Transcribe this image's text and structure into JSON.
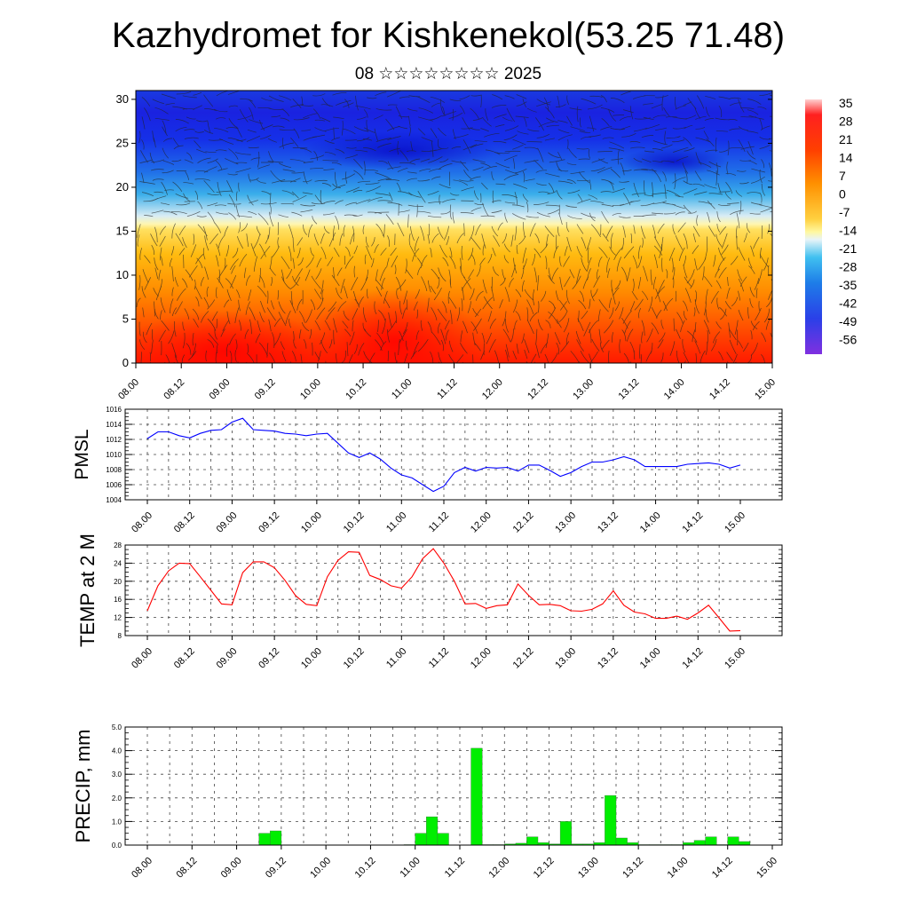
{
  "title": "Kazhydromet for Kishkenekol(53.25 71.48)",
  "subtitle": "08 ☆☆☆☆☆☆☆☆ 2025",
  "chart_data": [
    {
      "type": "heatmap",
      "id": "cross-section",
      "description_note": "",
      "x_ticks": [
        "08.00",
        "08.12",
        "09.00",
        "09.12",
        "10.00",
        "10.12",
        "11.00",
        "11.12",
        "12.00",
        "12.12",
        "13.00",
        "13.12",
        "14.00",
        "14.12",
        "15.00"
      ],
      "y_ticks": [
        0,
        5,
        10,
        15,
        20,
        25,
        30
      ],
      "ylim": [
        0,
        31
      ],
      "colorbar_labels": [
        35,
        28,
        21,
        14,
        7,
        0,
        -7,
        -14,
        -21,
        -28,
        -35,
        -42,
        -49,
        -56
      ],
      "colors": {
        "hot": "#ff1a00",
        "warm": "#ffa500",
        "mid": "#fff5a0",
        "cool": "#3aaeea",
        "cold": "#1530e8"
      }
    },
    {
      "type": "line",
      "id": "pmsl",
      "ylabel": "PMSL",
      "ylim": [
        1004,
        1016
      ],
      "y_ticks": [
        1004,
        1006,
        1008,
        1010,
        1012,
        1014,
        1016
      ],
      "x_ticks": [
        "08.00",
        "08.12",
        "09.00",
        "09.12",
        "10.00",
        "10.12",
        "11.00",
        "11.12",
        "12.00",
        "12.12",
        "13.00",
        "13.12",
        "14.00",
        "14.12",
        "15.00"
      ],
      "color": "#0000ff",
      "x": [
        0,
        3,
        6,
        9,
        12,
        15,
        18,
        21,
        24,
        27,
        30,
        33,
        36,
        39,
        42,
        45,
        48,
        51,
        54,
        57,
        60,
        63,
        66,
        69,
        72,
        75,
        78,
        81,
        84,
        87,
        90,
        93,
        96,
        99,
        102,
        105,
        108,
        111,
        114,
        117,
        120,
        123,
        126,
        129,
        132,
        135,
        138,
        141,
        144,
        147,
        150,
        153,
        156,
        159,
        162,
        165,
        168
      ],
      "values": [
        1012.1,
        1013.0,
        1013.0,
        1012.5,
        1012.2,
        1012.8,
        1013.2,
        1013.3,
        1014.3,
        1014.8,
        1013.3,
        1013.2,
        1013.1,
        1012.8,
        1012.7,
        1012.5,
        1012.7,
        1012.8,
        1011.5,
        1010.2,
        1009.6,
        1010.2,
        1009.4,
        1008.2,
        1007.3,
        1006.9,
        1006.0,
        1005.1,
        1005.8,
        1007.6,
        1008.3,
        1007.8,
        1008.3,
        1008.2,
        1008.3,
        1007.8,
        1008.6,
        1008.6,
        1007.9,
        1007.1,
        1007.6,
        1008.4,
        1009.0,
        1009.0,
        1009.3,
        1009.7,
        1009.3,
        1008.4,
        1008.4,
        1008.4,
        1008.4,
        1008.7,
        1008.8,
        1008.9,
        1008.7,
        1008.2,
        1008.6
      ]
    },
    {
      "type": "line",
      "id": "temp",
      "ylabel": "TEMP at 2 M",
      "ylim": [
        8,
        28
      ],
      "y_ticks": [
        8,
        12,
        16,
        20,
        24,
        28
      ],
      "x_ticks": [
        "08.00",
        "08.12",
        "09.00",
        "09.12",
        "10.00",
        "10.12",
        "11.00",
        "11.12",
        "12.00",
        "12.12",
        "13.00",
        "13.12",
        "14.00",
        "14.12",
        "15.00"
      ],
      "color": "#ff0000",
      "x": [
        0,
        3,
        6,
        9,
        12,
        15,
        18,
        21,
        24,
        27,
        30,
        33,
        36,
        39,
        42,
        45,
        48,
        51,
        54,
        57,
        60,
        63,
        66,
        69,
        72,
        75,
        78,
        81,
        84,
        87,
        90,
        93,
        96,
        99,
        102,
        105,
        108,
        111,
        114,
        117,
        120,
        123,
        126,
        129,
        132,
        135,
        138,
        141,
        144,
        147,
        150,
        153,
        156,
        159,
        162,
        165,
        168
      ],
      "values": [
        13.5,
        19.0,
        22.3,
        24.0,
        23.9,
        21.0,
        18.0,
        15.0,
        14.8,
        21.9,
        24.3,
        24.3,
        23.0,
        20.2,
        16.8,
        14.9,
        14.6,
        21.0,
        24.6,
        26.5,
        26.4,
        21.3,
        20.4,
        19.0,
        18.5,
        21.0,
        25.0,
        27.2,
        24.0,
        20.0,
        15.0,
        15.1,
        14.0,
        14.6,
        14.8,
        19.4,
        16.9,
        14.8,
        14.9,
        14.6,
        13.5,
        13.4,
        13.8,
        15.0,
        17.9,
        14.7,
        13.2,
        12.8,
        11.8,
        11.8,
        12.3,
        11.6,
        13.0,
        14.7,
        11.9,
        9.0,
        9.1
      ]
    },
    {
      "type": "bar",
      "id": "precip",
      "ylabel": "PRECIP, mm",
      "ylim": [
        0,
        5
      ],
      "y_ticks": [
        "0.0",
        "1.0",
        "2.0",
        "3.0",
        "4.0",
        "5.0"
      ],
      "x_ticks": [
        "08.00",
        "08.12",
        "09.00",
        "09.12",
        "10.00",
        "10.12",
        "11.00",
        "11.12",
        "12.00",
        "12.12",
        "13.00",
        "13.12",
        "14.00",
        "14.12",
        "15.00"
      ],
      "color": "#00ee00",
      "x": [
        33,
        36,
        72,
        75,
        78,
        81,
        90,
        93,
        96,
        99,
        102,
        105,
        108,
        111,
        114,
        117,
        120,
        123,
        126,
        129,
        132,
        135,
        138,
        141,
        144,
        147,
        150,
        153,
        156,
        159,
        162
      ],
      "values": [
        0.5,
        0.6,
        0.02,
        0.5,
        1.2,
        0.5,
        4.1,
        0.02,
        0.02,
        0.05,
        0.08,
        0.35,
        0.1,
        0.05,
        1.0,
        0.05,
        0.05,
        0.1,
        2.1,
        0.3,
        0.1,
        0.02,
        0.02,
        0.02,
        0.02,
        0.1,
        0.2,
        0.35,
        0.02,
        0.35,
        0.15
      ]
    }
  ]
}
